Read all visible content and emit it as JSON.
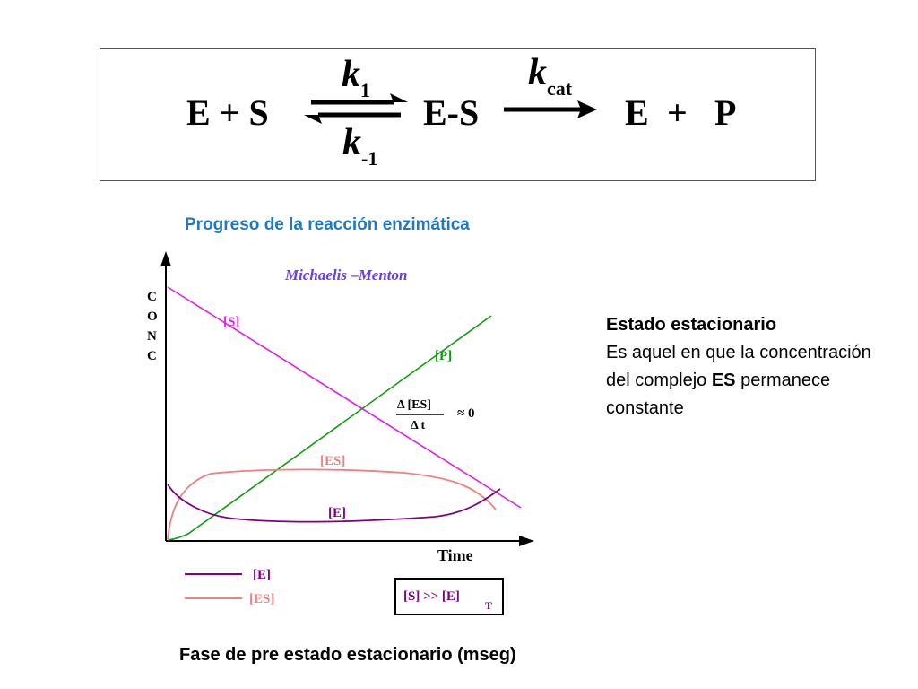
{
  "scheme": {
    "reactants": "E + S",
    "k1_base": "k",
    "k1_sub": "1",
    "kminus1_base": "k",
    "kminus1_sub": "-1",
    "complex": "E-S",
    "kcat_base": "k",
    "kcat_sub": "cat",
    "products_E": "E",
    "products_plus": "+",
    "products_P": "P"
  },
  "title": "Progreso de la reacción enzimática",
  "caption": "Fase de pre estado estacionario (mseg)",
  "steady_state": {
    "title": "Estado estacionario",
    "text_before": "Es aquel en que la concentración del complejo ",
    "text_bold": "ES",
    "text_after": " permanece constante"
  },
  "graph": {
    "plot_title": "Michaelis –Menton",
    "y_axis_label": [
      "C",
      "O",
      "N",
      "C"
    ],
    "x_axis_label": "Time",
    "labels": {
      "S": "[S]",
      "P": "[P]",
      "ES": "[ES]",
      "E": "[E]"
    },
    "annotation": {
      "numerator": "Δ [ES]",
      "denominator": "Δ t",
      "approx": "≈ 0"
    },
    "legend": [
      {
        "label": "[E]",
        "color": "#800080"
      },
      {
        "label": "[ES]",
        "color": "#f08080"
      }
    ],
    "condition": {
      "text": "[S] >> [E]",
      "subscript": "T"
    },
    "colors": {
      "S": "#e020e0",
      "P": "#119911",
      "ES": "#f08080",
      "E": "#800080",
      "title": "#6a3de8",
      "axis": "#000000"
    }
  }
}
